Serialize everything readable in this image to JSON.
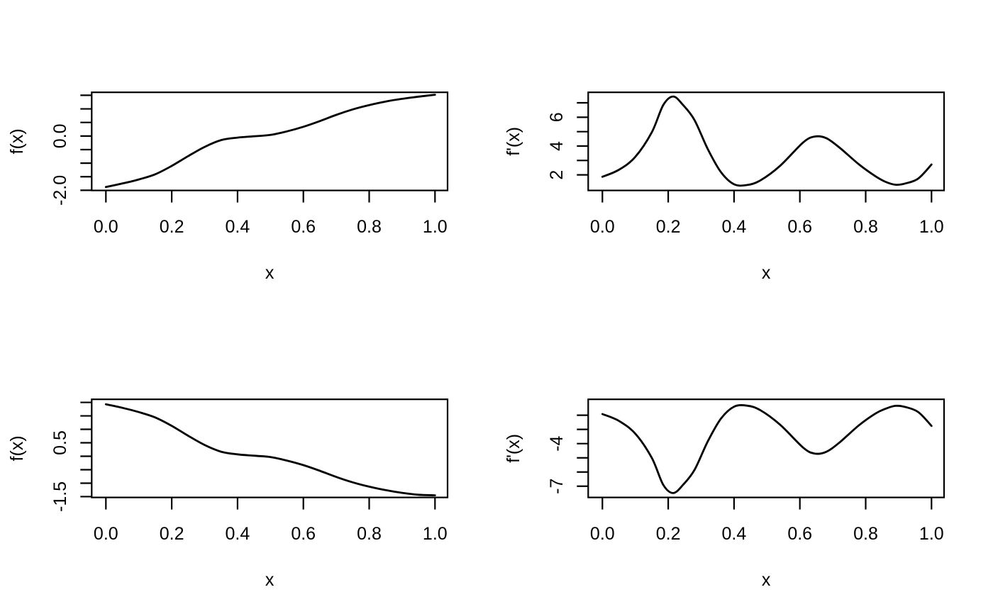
{
  "page": {
    "background": "#ffffff",
    "foreground": "#000000"
  },
  "chart_data": [
    {
      "id": "f-top-left",
      "position": "top-left",
      "type": "line",
      "title": "",
      "xlabel": "x",
      "ylabel": "f(x)",
      "line_color": "#000000",
      "axis_color": "#000000",
      "grid": false,
      "legend": false,
      "xlim": [
        -0.043,
        1.038
      ],
      "ylim": [
        -2.005,
        1.61
      ],
      "x": [
        0,
        0.05,
        0.1,
        0.15,
        0.2,
        0.25,
        0.3,
        0.35,
        0.4,
        0.45,
        0.5,
        0.55,
        0.6,
        0.65,
        0.7,
        0.75,
        0.8,
        0.85,
        0.9,
        0.95,
        1
      ],
      "y": [
        -1.88,
        -1.75,
        -1.6,
        -1.41,
        -1.1,
        -0.74,
        -0.4,
        -0.15,
        -0.06,
        -0.01,
        0.04,
        0.17,
        0.34,
        0.55,
        0.78,
        0.98,
        1.14,
        1.27,
        1.37,
        1.45,
        1.52
      ],
      "xticks": {
        "values": [
          0,
          0.2,
          0.4,
          0.6,
          0.8,
          1
        ],
        "labels": [
          "0.0",
          "0.2",
          "0.4",
          "0.6",
          "0.8",
          "1.0"
        ]
      },
      "yticks": {
        "values": [
          1.5,
          1.0,
          0.5,
          0.0,
          -0.5,
          -1.0,
          -1.5,
          -2.0
        ],
        "labels": [
          "",
          "",
          "",
          "0.0",
          "",
          "",
          "",
          "-2.0"
        ]
      }
    },
    {
      "id": "fprime-top-right",
      "position": "top-right",
      "type": "line",
      "title": "",
      "xlabel": "x",
      "ylabel": "f'(x)",
      "line_color": "#000000",
      "axis_color": "#000000",
      "grid": false,
      "legend": false,
      "xlim": [
        -0.043,
        1.038
      ],
      "ylim": [
        0.92,
        7.73
      ],
      "x": [
        0,
        0.05,
        0.1,
        0.15,
        0.185,
        0.215,
        0.245,
        0.28,
        0.32,
        0.36,
        0.4,
        0.44,
        0.48,
        0.54,
        0.61,
        0.645,
        0.68,
        0.72,
        0.78,
        0.83,
        0.86,
        0.89,
        0.92,
        0.96,
        1
      ],
      "y": [
        1.87,
        2.35,
        3.25,
        4.95,
        6.85,
        7.44,
        6.85,
        5.8,
        3.8,
        2.2,
        1.35,
        1.3,
        1.62,
        2.63,
        4.25,
        4.66,
        4.55,
        3.9,
        2.72,
        1.9,
        1.52,
        1.32,
        1.4,
        1.75,
        2.72
      ],
      "xticks": {
        "values": [
          0,
          0.2,
          0.4,
          0.6,
          0.8,
          1
        ],
        "labels": [
          "0.0",
          "0.2",
          "0.4",
          "0.6",
          "0.8",
          "1.0"
        ]
      },
      "yticks": {
        "values": [
          7,
          6,
          5,
          4,
          3,
          2
        ],
        "labels": [
          "",
          "6",
          "",
          "4",
          "",
          "2"
        ]
      }
    },
    {
      "id": "f-bottom-left",
      "position": "bottom-left",
      "type": "line",
      "title": "",
      "xlabel": "x",
      "ylabel": "f(x)",
      "line_color": "#000000",
      "axis_color": "#000000",
      "grid": false,
      "legend": false,
      "xlim": [
        -0.043,
        1.038
      ],
      "ylim": [
        -1.53,
        2.115
      ],
      "x": [
        0,
        0.05,
        0.1,
        0.15,
        0.2,
        0.25,
        0.3,
        0.35,
        0.4,
        0.45,
        0.5,
        0.55,
        0.6,
        0.65,
        0.7,
        0.75,
        0.8,
        0.85,
        0.9,
        0.95,
        1
      ],
      "y": [
        1.93,
        1.8,
        1.64,
        1.44,
        1.13,
        0.76,
        0.42,
        0.17,
        0.07,
        0.02,
        -0.03,
        -0.16,
        -0.33,
        -0.54,
        -0.77,
        -0.97,
        -1.13,
        -1.26,
        -1.36,
        -1.43,
        -1.45
      ],
      "xticks": {
        "values": [
          0,
          0.2,
          0.4,
          0.6,
          0.8,
          1
        ],
        "labels": [
          "0.0",
          "0.2",
          "0.4",
          "0.6",
          "0.8",
          "1.0"
        ]
      },
      "yticks": {
        "values": [
          2.0,
          1.5,
          1.0,
          0.5,
          0.0,
          -0.5,
          -1.0,
          -1.5
        ],
        "labels": [
          "",
          "",
          "",
          "0.5",
          "",
          "",
          "",
          "-1.5"
        ]
      }
    },
    {
      "id": "fprime-bottom-right",
      "position": "bottom-right",
      "type": "line",
      "title": "",
      "xlabel": "x",
      "ylabel": "f'(x)",
      "line_color": "#000000",
      "axis_color": "#000000",
      "grid": false,
      "legend": false,
      "xlim": [
        -0.043,
        1.038
      ],
      "ylim": [
        -7.79,
        -0.88
      ],
      "x": [
        0,
        0.05,
        0.1,
        0.15,
        0.185,
        0.215,
        0.245,
        0.28,
        0.32,
        0.36,
        0.4,
        0.44,
        0.48,
        0.54,
        0.61,
        0.645,
        0.68,
        0.72,
        0.78,
        0.83,
        0.86,
        0.89,
        0.92,
        0.96,
        1
      ],
      "y": [
        -1.92,
        -2.4,
        -3.3,
        -5.0,
        -6.9,
        -7.48,
        -6.9,
        -5.85,
        -3.85,
        -2.25,
        -1.4,
        -1.33,
        -1.65,
        -2.67,
        -4.28,
        -4.7,
        -4.58,
        -3.93,
        -2.7,
        -1.88,
        -1.55,
        -1.34,
        -1.42,
        -1.78,
        -2.75
      ],
      "xticks": {
        "values": [
          0,
          0.2,
          0.4,
          0.6,
          0.8,
          1
        ],
        "labels": [
          "0.0",
          "0.2",
          "0.4",
          "0.6",
          "0.8",
          "1.0"
        ]
      },
      "yticks": {
        "values": [
          -2,
          -3,
          -4,
          -5,
          -6,
          -7
        ],
        "labels": [
          "",
          "",
          "-4",
          "",
          "",
          "-7"
        ]
      }
    }
  ]
}
